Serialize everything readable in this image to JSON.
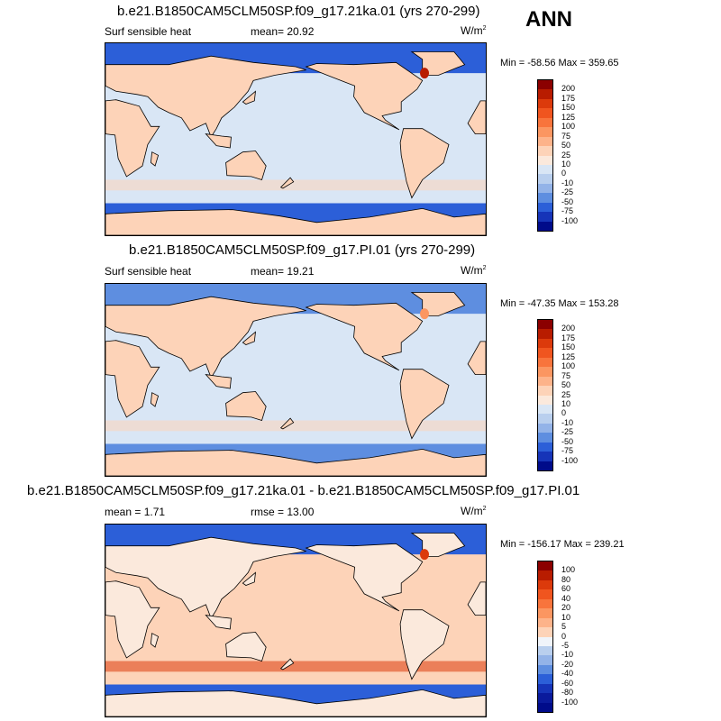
{
  "season": "ANN",
  "panels": [
    {
      "title": "b.e21.B1850CAM5CLM50SP.f09_g17.21ka.01 (yrs 270-299)",
      "left_label": "Surf sensible heat",
      "center_label": "mean=  20.92",
      "units": "W/m",
      "units_sup": "2",
      "minmax": "Min = -58.56 Max = 359.65",
      "colorbar_labels": [
        "200",
        "175",
        "150",
        "125",
        "100",
        "75",
        "50",
        "25",
        "10",
        "0",
        "-10",
        "-25",
        "-50",
        "-75",
        "-100"
      ],
      "colors": [
        "#8b0000",
        "#b81c00",
        "#dc3a0b",
        "#f0551f",
        "#f8743c",
        "#fb9661",
        "#fdb38a",
        "#fdd3b8",
        "#fbe9dc",
        "#d9e6f5",
        "#b9cfee",
        "#93b3e8",
        "#5e8ee0",
        "#2c5fd8",
        "#1634b8",
        "#000b8a"
      ],
      "ocean": "#d9e6f5",
      "land": "#fdd3b8",
      "polar": "#2c5fd8",
      "hot": "#b81c00"
    },
    {
      "title": "b.e21.B1850CAM5CLM50SP.f09_g17.PI.01 (yrs 270-299)",
      "left_label": "Surf sensible heat",
      "center_label": "mean=  19.21",
      "units": "W/m",
      "units_sup": "2",
      "minmax": "Min = -47.35 Max = 153.28",
      "colorbar_labels": [
        "200",
        "175",
        "150",
        "125",
        "100",
        "75",
        "50",
        "25",
        "10",
        "0",
        "-10",
        "-25",
        "-50",
        "-75",
        "-100"
      ],
      "colors": [
        "#8b0000",
        "#b81c00",
        "#dc3a0b",
        "#f0551f",
        "#f8743c",
        "#fb9661",
        "#fdb38a",
        "#fdd3b8",
        "#fbe9dc",
        "#d9e6f5",
        "#b9cfee",
        "#93b3e8",
        "#5e8ee0",
        "#2c5fd8",
        "#1634b8",
        "#000b8a"
      ],
      "ocean": "#d9e6f5",
      "land": "#fdd3b8",
      "polar": "#5e8ee0",
      "hot": "#fb9661"
    },
    {
      "title": "b.e21.B1850CAM5CLM50SP.f09_g17.21ka.01 - b.e21.B1850CAM5CLM50SP.f09_g17.PI.01",
      "left_label": "mean =   1.71",
      "center_label": "rmse =  13.00",
      "units": "W/m",
      "units_sup": "2",
      "minmax": "Min = -156.17 Max = 239.21",
      "colorbar_labels": [
        "100",
        "80",
        "60",
        "40",
        "20",
        "10",
        "5",
        "0",
        "-5",
        "-10",
        "-20",
        "-40",
        "-60",
        "-80",
        "-100"
      ],
      "colors": [
        "#8b0000",
        "#b81c00",
        "#dc3a0b",
        "#f0551f",
        "#f8743c",
        "#fb9661",
        "#fdb38a",
        "#fdd3b8",
        "#f0f4fa",
        "#b9cfee",
        "#93b3e8",
        "#5e8ee0",
        "#2c5fd8",
        "#1634b8",
        "#0a1a9c",
        "#000b8a"
      ],
      "ocean": "#fdd3b8",
      "land": "#fbe9dc",
      "polar": "#2c5fd8",
      "hot": "#dc3a0b"
    }
  ]
}
